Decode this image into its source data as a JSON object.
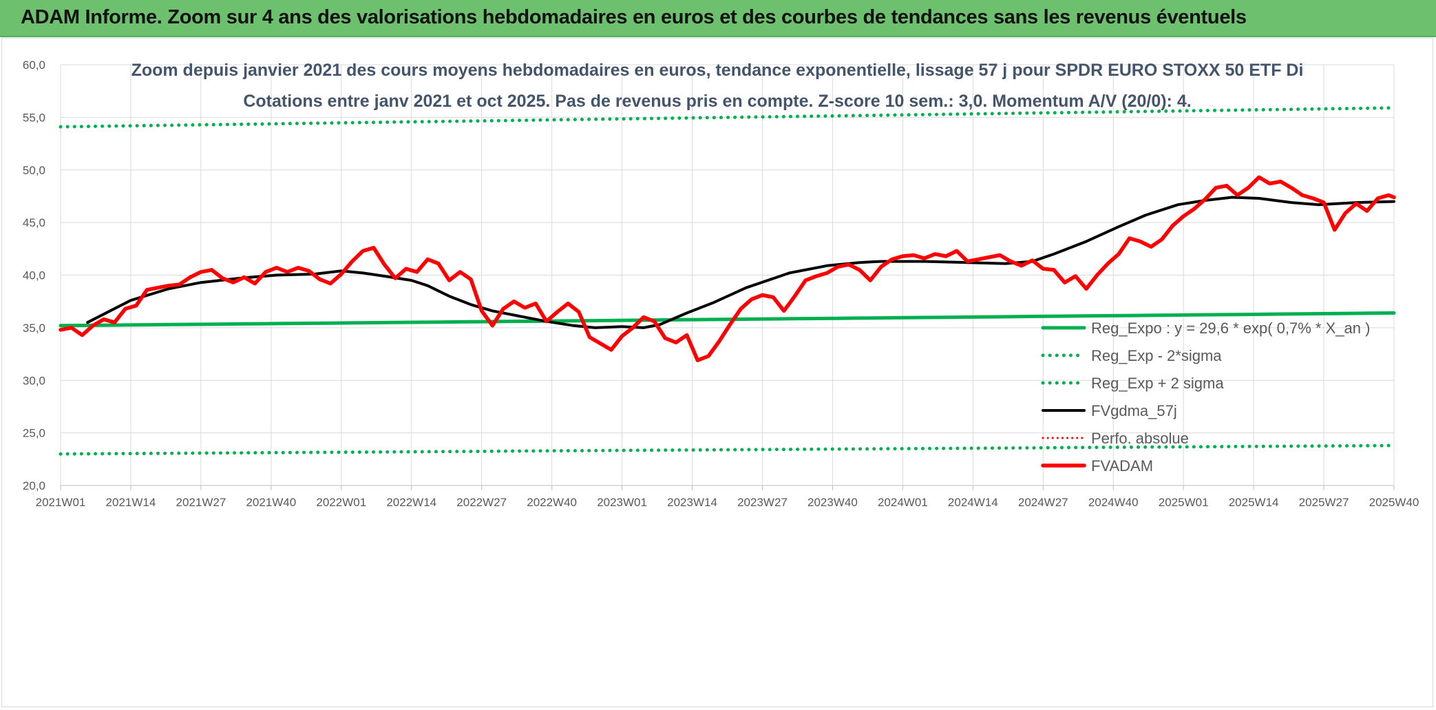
{
  "header": {
    "title": "ADAM Informe. Zoom sur 4 ans des valorisations hebdomadaires en euros et des courbes de tendances sans les revenus éventuels"
  },
  "chart_data": {
    "type": "line",
    "title": "Zoom depuis janvier 2021 des cours moyens hebdomadaires en euros, tendance exponentielle, lissage 57 j pour SPDR EURO STOXX 50 ETF Di",
    "subtitle": "Cotations entre janv 2021 et oct 2025. Pas de revenus pris en compte. Z-score 10 sem.: 3,0. Momentum A/V (20/0): 4.",
    "ylim": [
      20,
      60
    ],
    "y_ticks": [
      "20,0",
      "25,0",
      "30,0",
      "35,0",
      "40,0",
      "45,0",
      "50,0",
      "55,0",
      "60,0"
    ],
    "x_ticks": [
      "2021W01",
      "2021W14",
      "2021W27",
      "2021W40",
      "2022W01",
      "2022W14",
      "2022W27",
      "2022W40",
      "2023W01",
      "2023W14",
      "2023W27",
      "2023W40",
      "2024W01",
      "2024W14",
      "2024W27",
      "2024W40",
      "2025W01",
      "2025W14",
      "2025W27",
      "2025W40"
    ],
    "grid": true,
    "legend_position": "bottom-right",
    "colors": {
      "reg_expo": "#00b050",
      "sigma_bands": "#00b050",
      "fvgdma": "#000000",
      "perfo": "#ff0000",
      "fvadam": "#ff0000"
    },
    "series": [
      {
        "name": "Reg_Expo : y = 29,6 * exp( 0,7% *  X_an )",
        "style": "solid",
        "x_start": 0,
        "x_end": 247,
        "values": [
          35.2,
          36.4
        ]
      },
      {
        "name": "Reg_Exp - 2*sigma",
        "style": "dotted",
        "x_start": 0,
        "x_end": 247,
        "values": [
          23.0,
          23.8
        ]
      },
      {
        "name": "Reg_Exp + 2 sigma",
        "style": "dotted",
        "x_start": 0,
        "x_end": 247,
        "values": [
          54.1,
          55.9
        ]
      },
      {
        "name": "FVgdma_57j",
        "style": "solid",
        "x_start": 5,
        "x_end": 247,
        "values": [
          [
            5,
            35.5
          ],
          [
            13,
            37.6
          ],
          [
            20,
            38.7
          ],
          [
            26,
            39.3
          ],
          [
            33,
            39.7
          ],
          [
            40,
            40.0
          ],
          [
            47,
            40.1
          ],
          [
            52,
            40.4
          ],
          [
            56,
            40.2
          ],
          [
            60,
            39.9
          ],
          [
            65,
            39.5
          ],
          [
            68,
            39.0
          ],
          [
            72,
            38.0
          ],
          [
            76,
            37.2
          ],
          [
            80,
            36.6
          ],
          [
            85,
            36.1
          ],
          [
            90,
            35.6
          ],
          [
            95,
            35.2
          ],
          [
            99,
            35.0
          ],
          [
            104,
            35.1
          ],
          [
            108,
            35.0
          ],
          [
            111,
            35.3
          ],
          [
            116,
            36.4
          ],
          [
            121,
            37.4
          ],
          [
            127,
            38.8
          ],
          [
            135,
            40.2
          ],
          [
            142,
            40.9
          ],
          [
            148,
            41.2
          ],
          [
            152,
            41.3
          ],
          [
            160,
            41.3
          ],
          [
            168,
            41.2
          ],
          [
            175,
            41.1
          ],
          [
            180,
            41.3
          ],
          [
            184,
            42.0
          ],
          [
            190,
            43.2
          ],
          [
            196,
            44.6
          ],
          [
            201,
            45.7
          ],
          [
            207,
            46.7
          ],
          [
            212,
            47.1
          ],
          [
            217,
            47.4
          ],
          [
            222,
            47.3
          ],
          [
            228,
            46.9
          ],
          [
            233,
            46.7
          ],
          [
            240,
            46.9
          ],
          [
            247,
            47.0
          ]
        ]
      },
      {
        "name": "Perfo. absolue",
        "style": "dotted",
        "values": []
      },
      {
        "name": "FVADAM",
        "style": "solid",
        "x_start": 0,
        "x_end": 247,
        "values": [
          [
            0,
            34.8
          ],
          [
            2,
            35.0
          ],
          [
            4,
            34.3
          ],
          [
            6,
            35.2
          ],
          [
            8,
            35.8
          ],
          [
            10,
            35.5
          ],
          [
            12,
            36.8
          ],
          [
            14,
            37.1
          ],
          [
            16,
            38.6
          ],
          [
            18,
            38.8
          ],
          [
            20,
            39.0
          ],
          [
            22,
            39.1
          ],
          [
            24,
            39.8
          ],
          [
            26,
            40.3
          ],
          [
            28,
            40.5
          ],
          [
            30,
            39.7
          ],
          [
            32,
            39.3
          ],
          [
            34,
            39.8
          ],
          [
            36,
            39.2
          ],
          [
            38,
            40.3
          ],
          [
            40,
            40.7
          ],
          [
            42,
            40.3
          ],
          [
            44,
            40.7
          ],
          [
            46,
            40.4
          ],
          [
            48,
            39.6
          ],
          [
            50,
            39.2
          ],
          [
            52,
            40.1
          ],
          [
            54,
            41.3
          ],
          [
            56,
            42.3
          ],
          [
            58,
            42.6
          ],
          [
            60,
            41.0
          ],
          [
            62,
            39.7
          ],
          [
            64,
            40.6
          ],
          [
            66,
            40.3
          ],
          [
            68,
            41.5
          ],
          [
            70,
            41.1
          ],
          [
            72,
            39.5
          ],
          [
            74,
            40.3
          ],
          [
            76,
            39.6
          ],
          [
            78,
            36.6
          ],
          [
            80,
            35.2
          ],
          [
            82,
            36.8
          ],
          [
            84,
            37.5
          ],
          [
            86,
            36.9
          ],
          [
            88,
            37.3
          ],
          [
            90,
            35.6
          ],
          [
            92,
            36.5
          ],
          [
            94,
            37.3
          ],
          [
            96,
            36.5
          ],
          [
            98,
            34.1
          ],
          [
            100,
            33.5
          ],
          [
            102,
            32.9
          ],
          [
            104,
            34.2
          ],
          [
            106,
            35.0
          ],
          [
            108,
            36.0
          ],
          [
            110,
            35.6
          ],
          [
            112,
            34.0
          ],
          [
            114,
            33.6
          ],
          [
            116,
            34.3
          ],
          [
            118,
            31.9
          ],
          [
            120,
            32.3
          ],
          [
            122,
            33.7
          ],
          [
            124,
            35.3
          ],
          [
            126,
            36.8
          ],
          [
            128,
            37.7
          ],
          [
            130,
            38.1
          ],
          [
            132,
            37.9
          ],
          [
            134,
            36.6
          ],
          [
            136,
            38.0
          ],
          [
            138,
            39.5
          ],
          [
            140,
            39.9
          ],
          [
            142,
            40.2
          ],
          [
            144,
            40.8
          ],
          [
            146,
            41.0
          ],
          [
            148,
            40.5
          ],
          [
            150,
            39.5
          ],
          [
            152,
            40.8
          ],
          [
            154,
            41.5
          ],
          [
            156,
            41.8
          ],
          [
            158,
            41.9
          ],
          [
            160,
            41.6
          ],
          [
            162,
            42.0
          ],
          [
            164,
            41.8
          ],
          [
            166,
            42.3
          ],
          [
            168,
            41.3
          ],
          [
            170,
            41.5
          ],
          [
            172,
            41.7
          ],
          [
            174,
            41.9
          ],
          [
            176,
            41.3
          ],
          [
            178,
            40.9
          ],
          [
            180,
            41.4
          ],
          [
            182,
            40.6
          ],
          [
            184,
            40.5
          ],
          [
            186,
            39.3
          ],
          [
            188,
            39.9
          ],
          [
            190,
            38.7
          ],
          [
            192,
            40.0
          ],
          [
            194,
            41.1
          ],
          [
            196,
            42.0
          ],
          [
            198,
            43.5
          ],
          [
            200,
            43.2
          ],
          [
            202,
            42.7
          ],
          [
            204,
            43.4
          ],
          [
            206,
            44.7
          ],
          [
            208,
            45.6
          ],
          [
            210,
            46.3
          ],
          [
            212,
            47.2
          ],
          [
            214,
            48.3
          ],
          [
            216,
            48.5
          ],
          [
            218,
            47.6
          ],
          [
            220,
            48.3
          ],
          [
            222,
            49.3
          ],
          [
            224,
            48.7
          ],
          [
            226,
            48.9
          ],
          [
            228,
            48.3
          ],
          [
            230,
            47.6
          ],
          [
            232,
            47.3
          ],
          [
            234,
            46.9
          ],
          [
            236,
            44.3
          ],
          [
            238,
            45.9
          ],
          [
            240,
            46.8
          ],
          [
            242,
            46.1
          ],
          [
            244,
            47.3
          ],
          [
            246,
            47.6
          ],
          [
            247,
            47.4
          ]
        ]
      }
    ]
  }
}
